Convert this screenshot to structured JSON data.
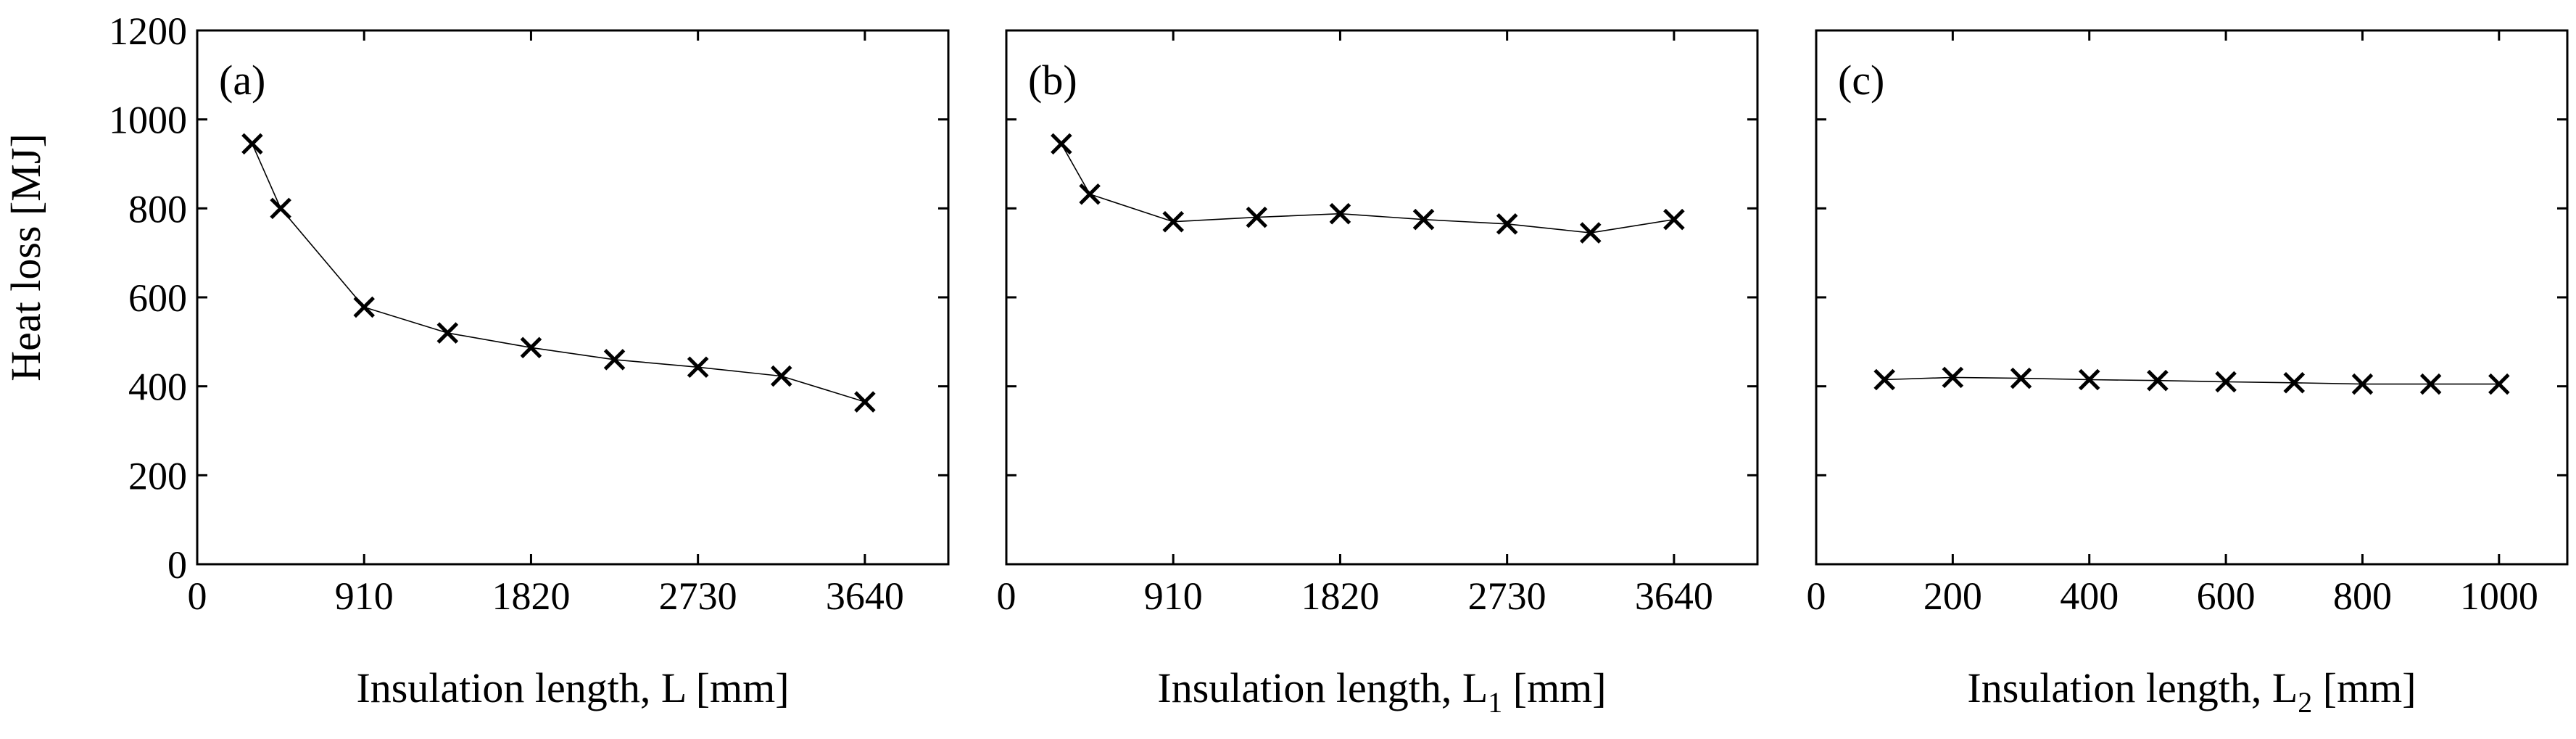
{
  "figure": {
    "ylabel": "Heat loss [MJ]",
    "y_ticks": [
      "0",
      "200",
      "400",
      "600",
      "800",
      "1000",
      "1200"
    ]
  },
  "chart_data": [
    {
      "type": "line",
      "panel_label": "(a)",
      "xlabel": "Insulation length, L [mm]",
      "xlabel_main": "Insulation length, L",
      "xlabel_sub": "",
      "xlabel_unit": "[mm]",
      "ylabel": "Heat loss [MJ]",
      "xlim": [
        0,
        4095
      ],
      "ylim": [
        0,
        1200
      ],
      "x_tick_values": [
        0,
        910,
        1820,
        2730,
        3640
      ],
      "x_tick_labels": [
        "0",
        "910",
        "1820",
        "2730",
        "3640"
      ],
      "y_tick_values": [
        0,
        200,
        400,
        600,
        800,
        1000,
        1200
      ],
      "y_tick_labels": [
        "0",
        "200",
        "400",
        "600",
        "800",
        "1000",
        "1200"
      ],
      "marker": "x",
      "grid": false,
      "x": [
        300,
        455,
        910,
        1365,
        1820,
        2275,
        2730,
        3185,
        3640
      ],
      "y": [
        945,
        800,
        578,
        520,
        487,
        460,
        443,
        423,
        365
      ]
    },
    {
      "type": "line",
      "panel_label": "(b)",
      "xlabel": "Insulation length, L1 [mm]",
      "xlabel_main": "Insulation length, L",
      "xlabel_sub": "1",
      "xlabel_unit": "[mm]",
      "ylabel": "",
      "xlim": [
        0,
        4095
      ],
      "ylim": [
        0,
        1200
      ],
      "x_tick_values": [
        0,
        910,
        1820,
        2730,
        3640
      ],
      "x_tick_labels": [
        "0",
        "910",
        "1820",
        "2730",
        "3640"
      ],
      "y_tick_values": [
        0,
        200,
        400,
        600,
        800,
        1000,
        1200
      ],
      "y_tick_labels": [],
      "marker": "x",
      "grid": false,
      "x": [
        300,
        455,
        910,
        1365,
        1820,
        2275,
        2730,
        3185,
        3640
      ],
      "y": [
        945,
        832,
        770,
        780,
        788,
        775,
        765,
        745,
        775
      ]
    },
    {
      "type": "line",
      "panel_label": "(c)",
      "xlabel": "Insulation length, L2 [mm]",
      "xlabel_main": "Insulation length, L",
      "xlabel_sub": "2",
      "xlabel_unit": "[mm]",
      "ylabel": "",
      "xlim": [
        0,
        1100
      ],
      "ylim": [
        0,
        1200
      ],
      "x_tick_values": [
        0,
        200,
        400,
        600,
        800,
        1000
      ],
      "x_tick_labels": [
        "0",
        "200",
        "400",
        "600",
        "800",
        "1000"
      ],
      "y_tick_values": [
        0,
        200,
        400,
        600,
        800,
        1000,
        1200
      ],
      "y_tick_labels": [],
      "marker": "x",
      "grid": false,
      "x": [
        100,
        200,
        300,
        400,
        500,
        600,
        700,
        800,
        900,
        1000
      ],
      "y": [
        415,
        420,
        418,
        415,
        413,
        410,
        408,
        405,
        405,
        405
      ]
    }
  ]
}
